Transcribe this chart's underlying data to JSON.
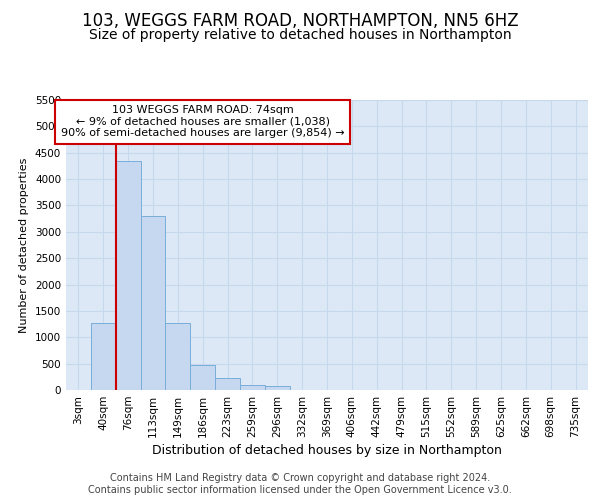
{
  "title": "103, WEGGS FARM ROAD, NORTHAMPTON, NN5 6HZ",
  "subtitle": "Size of property relative to detached houses in Northampton",
  "xlabel": "Distribution of detached houses by size in Northampton",
  "ylabel": "Number of detached properties",
  "bar_color": "#c5d8ef",
  "bar_edge_color": "#7aadda",
  "grid_color": "#c8d8ec",
  "background_color": "#dce8f5",
  "categories": [
    "3sqm",
    "40sqm",
    "76sqm",
    "113sqm",
    "149sqm",
    "186sqm",
    "223sqm",
    "259sqm",
    "296sqm",
    "332sqm",
    "369sqm",
    "406sqm",
    "442sqm",
    "479sqm",
    "515sqm",
    "552sqm",
    "589sqm",
    "625sqm",
    "662sqm",
    "698sqm",
    "735sqm"
  ],
  "values": [
    0,
    1280,
    4350,
    3300,
    1280,
    475,
    225,
    100,
    75,
    0,
    0,
    0,
    0,
    0,
    0,
    0,
    0,
    0,
    0,
    0,
    0
  ],
  "ylim_max": 5500,
  "yticks": [
    0,
    500,
    1000,
    1500,
    2000,
    2500,
    3000,
    3500,
    4000,
    4500,
    5000,
    5500
  ],
  "property_line_color": "#cc0000",
  "annotation_line1": "103 WEGGS FARM ROAD: 74sqm",
  "annotation_line2": "← 9% of detached houses are smaller (1,038)",
  "annotation_line3": "90% of semi-detached houses are larger (9,854) →",
  "annotation_box_facecolor": "#ffffff",
  "annotation_box_edgecolor": "#cc0000",
  "footnote": "Contains HM Land Registry data © Crown copyright and database right 2024.\nContains public sector information licensed under the Open Government Licence v3.0.",
  "title_fontsize": 12,
  "subtitle_fontsize": 10,
  "xlabel_fontsize": 9,
  "ylabel_fontsize": 8,
  "tick_fontsize": 7.5,
  "annotation_fontsize": 8,
  "footnote_fontsize": 7
}
